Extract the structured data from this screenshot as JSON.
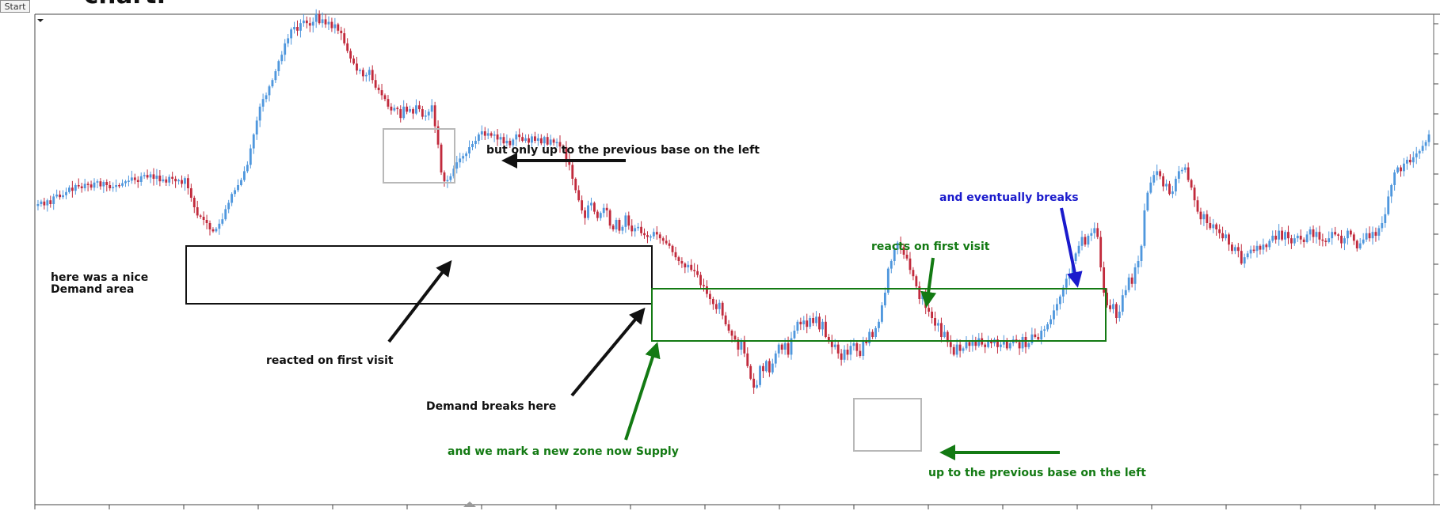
{
  "app": {
    "start_label": "Start",
    "heading_fragment": "chart."
  },
  "colors": {
    "bull": "#4f97dd",
    "bear": "#c12a3c",
    "frame": "#444444",
    "green": "#137a13",
    "blue": "#1a1acc",
    "black": "#111111",
    "grey_box": "#b8b8b8"
  },
  "chart_data": {
    "type": "candlestick",
    "title": "",
    "xlabel": "",
    "ylabel": "",
    "grid": false,
    "closes": [
      60,
      64,
      58,
      66,
      60,
      72,
      75,
      71,
      74,
      79,
      86,
      81,
      90,
      88,
      85,
      92,
      91,
      86,
      94,
      96,
      88,
      95,
      90,
      85,
      87,
      90,
      89,
      93,
      96,
      97,
      102,
      98,
      95,
      104,
      106,
      102,
      107,
      100,
      105,
      96,
      99,
      94,
      103,
      100,
      96,
      98,
      92,
      101,
      85,
      70,
      55,
      42,
      40,
      35,
      30,
      20,
      17,
      21,
      29,
      36,
      52,
      62,
      76,
      82,
      90,
      98,
      112,
      122,
      148,
      170,
      192,
      214,
      226,
      232,
      246,
      256,
      270,
      286,
      296,
      314,
      322,
      336,
      340,
      334,
      346,
      350,
      346,
      342,
      348,
      360,
      346,
      352,
      344,
      348,
      338,
      344,
      334,
      330,
      314,
      302,
      290,
      282,
      271,
      272,
      262,
      264,
      272,
      256,
      244,
      240,
      232,
      226,
      214,
      208,
      212,
      210,
      196,
      214,
      206,
      210,
      203,
      216,
      210,
      198,
      200,
      206,
      216,
      183,
      154,
      110,
      96,
      98,
      104,
      116,
      126,
      132,
      136,
      140,
      150,
      155,
      160,
      170,
      175,
      168,
      172,
      168,
      170,
      162,
      166,
      156,
      160,
      153,
      162,
      170,
      166,
      160,
      164,
      157,
      167,
      160,
      164,
      156,
      166,
      154,
      162,
      157,
      158,
      151,
      150,
      130,
      122,
      100,
      82,
      66,
      50,
      38,
      58,
      62,
      48,
      38,
      46,
      54,
      50,
      26,
      20,
      35,
      18,
      24,
      42,
      26,
      17,
      22,
      24,
      14,
      11,
      8,
      9,
      16,
      12,
      6,
      2,
      -2,
      -6,
      -16,
      -24,
      -30,
      -34,
      -40,
      -36,
      -44,
      -46,
      -52,
      -68,
      -70,
      -82,
      -90,
      -98,
      -106,
      -96,
      -116,
      -130,
      -140,
      -148,
      -154,
      -170,
      -156,
      -176,
      -196,
      -216,
      -230,
      -226,
      -196,
      -204,
      -188,
      -206,
      -192,
      -176,
      -162,
      -170,
      -160,
      -178,
      -152,
      -140,
      -126,
      -130,
      -124,
      -134,
      -120,
      -128,
      -118,
      -138,
      -126,
      -150,
      -156,
      -166,
      -162,
      -176,
      -186,
      -170,
      -178,
      -164,
      -160,
      -172,
      -180,
      -156,
      -160,
      -142,
      -150,
      -136,
      -126,
      -100,
      -80,
      -42,
      -30,
      -12,
      -1,
      -8,
      -20,
      -26,
      -44,
      -54,
      -70,
      -90,
      -82,
      -104,
      -110,
      -120,
      -132,
      -128,
      -150,
      -142,
      -158,
      -166,
      -178,
      -162,
      -172,
      -168,
      -158,
      -164,
      -156,
      -164,
      -152,
      -162,
      -166,
      -156,
      -160,
      -154,
      -166,
      -162,
      -156,
      -168,
      -160,
      -154,
      -158,
      -168,
      -150,
      -166,
      -160,
      -146,
      -150,
      -154,
      -140,
      -138,
      -130,
      -122,
      -108,
      -98,
      -86,
      -72,
      -58,
      -50,
      -30,
      -18,
      -6,
      8,
      -4,
      10,
      14,
      22,
      8,
      -40,
      -80,
      -100,
      -106,
      -98,
      -120,
      -110,
      -84,
      -76,
      -56,
      -66,
      -40,
      -30,
      -6,
      50,
      78,
      94,
      106,
      112,
      104,
      88,
      92,
      76,
      80,
      100,
      112,
      114,
      118,
      98,
      86,
      66,
      48,
      36,
      44,
      30,
      22,
      28,
      20,
      14,
      6,
      12,
      -4,
      -14,
      -8,
      -14,
      -34,
      -24,
      -18,
      -12,
      -14,
      -6,
      -12,
      -4,
      -8,
      2,
      10,
      4,
      18,
      4,
      16,
      6,
      -2,
      6,
      10,
      4,
      0,
      12,
      20,
      8,
      16,
      4,
      2,
      0,
      6,
      16,
      12,
      10,
      -2,
      6,
      18,
      12,
      2,
      -10,
      -2,
      4,
      14,
      6,
      16,
      10,
      22,
      30,
      44,
      72,
      90,
      110,
      118,
      112,
      124,
      130,
      126,
      134,
      140,
      144,
      152,
      158,
      170
    ],
    "annotations": [
      "but only up to the previous base on the left",
      "here was a nice",
      "Demand area",
      "reacted on first visit",
      "Demand breaks here",
      "and we mark a new zone now Supply",
      "reacts on first visit",
      "and eventually breaks",
      "up to the previous base on the left"
    ]
  }
}
